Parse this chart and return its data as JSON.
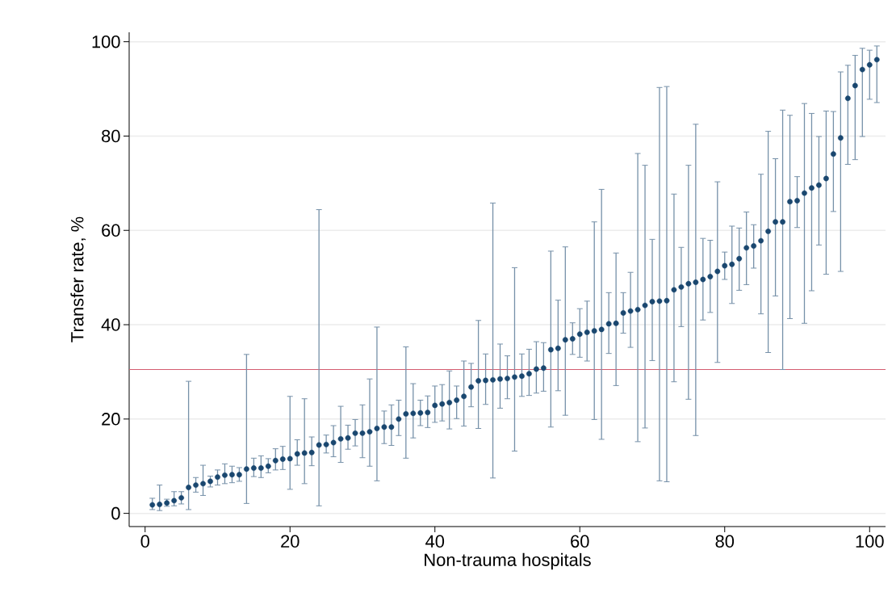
{
  "chart_data": {
    "type": "scatter",
    "xlabel": "Non-trauma hospitals",
    "ylabel": "Transfer rate, %",
    "x": [
      1,
      2,
      3,
      4,
      5,
      6,
      7,
      8,
      9,
      10,
      11,
      12,
      13,
      14,
      15,
      16,
      17,
      18,
      19,
      20,
      21,
      22,
      23,
      24,
      25,
      26,
      27,
      28,
      29,
      30,
      31,
      32,
      33,
      34,
      35,
      36,
      37,
      38,
      39,
      40,
      41,
      42,
      43,
      44,
      45,
      46,
      47,
      48,
      49,
      50,
      51,
      52,
      53,
      54,
      55,
      56,
      57,
      58,
      59,
      60,
      61,
      62,
      63,
      64,
      65,
      66,
      67,
      68,
      69,
      70,
      71,
      72,
      73,
      74,
      75,
      76,
      77,
      78,
      79,
      80,
      81,
      82,
      83,
      84,
      85,
      86,
      87,
      88,
      89,
      90,
      91,
      92,
      93,
      94,
      95,
      96,
      97,
      98,
      99,
      100,
      101
    ],
    "series": [
      {
        "color": "#1a476f",
        "values": [
          1.8,
          1.9,
          2.2,
          2.7,
          3.3,
          5.5,
          6.0,
          6.3,
          6.8,
          7.7,
          8.1,
          8.2,
          8.2,
          9.4,
          9.6,
          9.6,
          10.0,
          11.2,
          11.5,
          11.6,
          12.6,
          12.8,
          12.9,
          14.5,
          14.6,
          15.0,
          15.8,
          16.0,
          17.0,
          17.0,
          17.3,
          18.0,
          18.3,
          18.3,
          20.0,
          21.1,
          21.2,
          21.3,
          21.4,
          22.9,
          23.2,
          23.5,
          24.0,
          24.8,
          26.8,
          28.1,
          28.2,
          28.3,
          28.5,
          28.6,
          28.9,
          29.1,
          29.6,
          30.6,
          30.8,
          34.7,
          35.0,
          36.8,
          37.0,
          38.0,
          38.4,
          38.7,
          39.0,
          40.2,
          40.3,
          42.5,
          42.9,
          43.2,
          44.1,
          44.9,
          45.0,
          45.1,
          47.4,
          48.0,
          48.7,
          49.0,
          49.6,
          50.2,
          51.3,
          52.5,
          52.8,
          54.0,
          56.3,
          56.7,
          57.8,
          59.8,
          61.8,
          61.8,
          66.1,
          66.3,
          67.9,
          69.0,
          69.6,
          71.0,
          76.2,
          79.6,
          88.0,
          90.7,
          94.1,
          95.1,
          96.2
        ],
        "errors": [
          [
            0.8,
            3.2
          ],
          [
            0.6,
            6.0
          ],
          [
            1.5,
            3.0
          ],
          [
            1.6,
            4.6
          ],
          [
            2.0,
            4.6
          ],
          [
            0.8,
            28.0
          ],
          [
            4.5,
            7.6
          ],
          [
            3.8,
            10.2
          ],
          [
            5.6,
            7.9
          ],
          [
            6.0,
            9.2
          ],
          [
            6.3,
            10.5
          ],
          [
            6.5,
            10.0
          ],
          [
            6.8,
            9.7
          ],
          [
            2.1,
            33.7
          ],
          [
            7.8,
            11.7
          ],
          [
            7.6,
            12.2
          ],
          [
            8.6,
            11.6
          ],
          [
            9.2,
            13.7
          ],
          [
            9.3,
            14.2
          ],
          [
            5.1,
            24.8
          ],
          [
            10.2,
            15.6
          ],
          [
            6.3,
            24.3
          ],
          [
            10.1,
            16.2
          ],
          [
            1.6,
            64.4
          ],
          [
            12.8,
            16.6
          ],
          [
            12.0,
            18.6
          ],
          [
            10.8,
            22.7
          ],
          [
            13.6,
            18.7
          ],
          [
            14.3,
            19.9
          ],
          [
            11.8,
            23.0
          ],
          [
            10.0,
            28.5
          ],
          [
            6.9,
            39.5
          ],
          [
            14.8,
            21.7
          ],
          [
            14.4,
            23.0
          ],
          [
            16.5,
            24.0
          ],
          [
            11.7,
            35.3
          ],
          [
            16.0,
            27.5
          ],
          [
            18.6,
            24.0
          ],
          [
            18.2,
            24.9
          ],
          [
            19.3,
            27.0
          ],
          [
            19.6,
            27.3
          ],
          [
            17.9,
            30.2
          ],
          [
            20.1,
            27.0
          ],
          [
            18.5,
            32.3
          ],
          [
            22.6,
            31.8
          ],
          [
            18.0,
            40.9
          ],
          [
            23.1,
            33.8
          ],
          [
            7.5,
            65.8
          ],
          [
            22.3,
            35.9
          ],
          [
            24.3,
            33.4
          ],
          [
            13.2,
            52.1
          ],
          [
            24.8,
            33.8
          ],
          [
            25.0,
            34.8
          ],
          [
            25.5,
            36.4
          ],
          [
            25.9,
            36.2
          ],
          [
            18.3,
            55.6
          ],
          [
            26.0,
            45.2
          ],
          [
            20.8,
            56.5
          ],
          [
            33.7,
            40.4
          ],
          [
            33.1,
            43.4
          ],
          [
            32.3,
            45.0
          ],
          [
            19.9,
            61.8
          ],
          [
            15.7,
            68.7
          ],
          [
            33.9,
            46.8
          ],
          [
            27.1,
            55.2
          ],
          [
            38.2,
            46.8
          ],
          [
            35.2,
            51.1
          ],
          [
            15.2,
            76.3
          ],
          [
            18.1,
            73.8
          ],
          [
            32.4,
            58.1
          ],
          [
            6.9,
            90.3
          ],
          [
            6.7,
            90.5
          ],
          [
            27.9,
            67.7
          ],
          [
            39.6,
            56.4
          ],
          [
            24.2,
            73.8
          ],
          [
            16.5,
            82.5
          ],
          [
            41.0,
            58.3
          ],
          [
            42.6,
            57.9
          ],
          [
            32.0,
            70.3
          ],
          [
            49.6,
            55.4
          ],
          [
            44.5,
            60.9
          ],
          [
            47.3,
            60.5
          ],
          [
            48.5,
            63.9
          ],
          [
            52.0,
            61.2
          ],
          [
            42.3,
            71.9
          ],
          [
            34.1,
            81.0
          ],
          [
            46.1,
            75.2
          ],
          [
            30.5,
            85.5
          ],
          [
            41.3,
            84.4
          ],
          [
            60.6,
            71.4
          ],
          [
            40.3,
            86.9
          ],
          [
            47.2,
            84.8
          ],
          [
            56.9,
            79.9
          ],
          [
            50.7,
            85.3
          ],
          [
            64.0,
            85.2
          ],
          [
            51.3,
            93.6
          ],
          [
            74.0,
            95.0
          ],
          [
            75.0,
            97.1
          ],
          [
            79.9,
            98.6
          ],
          [
            87.8,
            98.2
          ],
          [
            87.1,
            99.1
          ]
        ]
      }
    ],
    "xlim": [
      -2.2,
      102.2
    ],
    "xticks": [
      0,
      20,
      40,
      60,
      80,
      100
    ],
    "ylim": [
      -2.8,
      102
    ],
    "yticks": [
      0,
      20,
      40,
      60,
      80,
      100
    ],
    "ref_lines": [
      {
        "axis": "y",
        "value": 30.5,
        "color": "#d45b6e"
      }
    ],
    "grid": "y",
    "marker": "circle"
  }
}
